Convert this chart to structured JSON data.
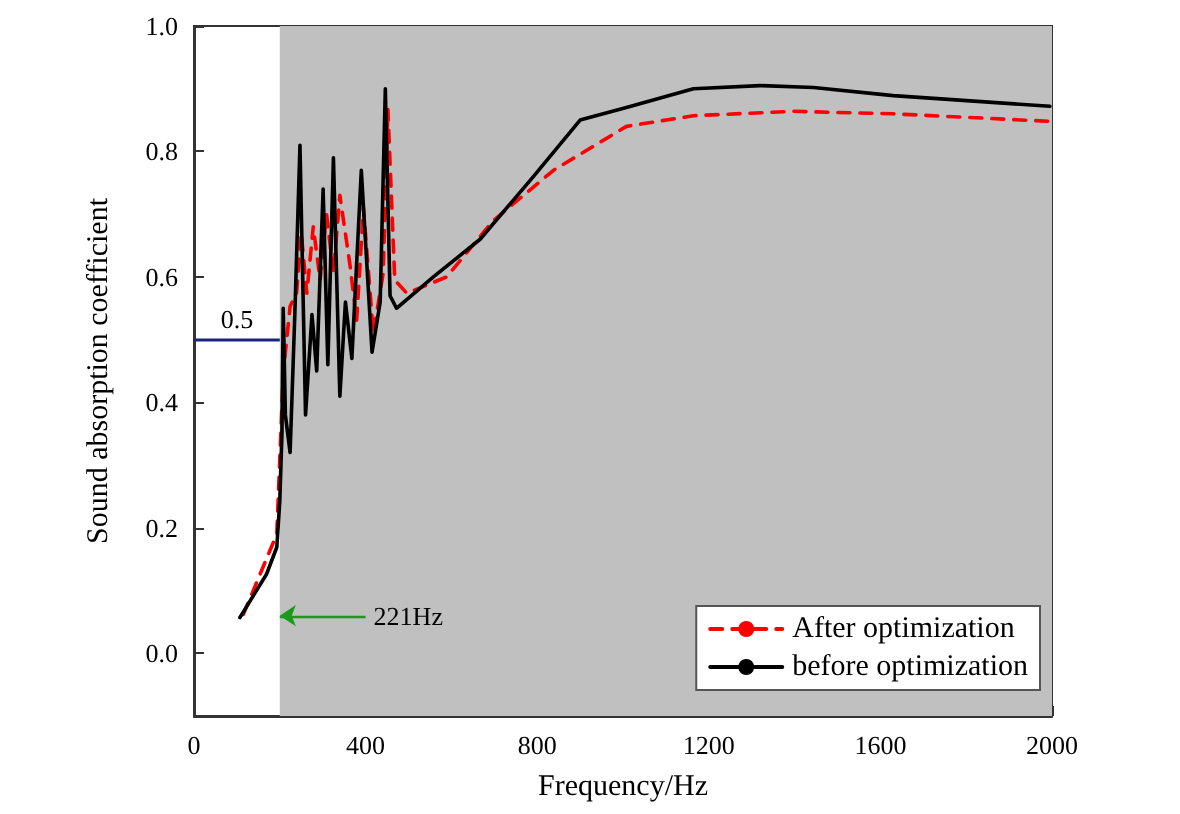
{
  "chart_data": {
    "type": "line",
    "xlabel": "Frequency/Hz",
    "ylabel": "Sound absorption coefficient",
    "xlim": [
      0,
      2000
    ],
    "xticks": [
      0,
      400,
      800,
      1200,
      1600,
      2000
    ],
    "ylim": [
      -0.1,
      1.0
    ],
    "yticks": [
      {
        "value": 0,
        "label": "0.0"
      },
      {
        "value": 0.2,
        "label": "0.2"
      },
      {
        "value": 0.4,
        "label": "0.4"
      },
      {
        "value": 0.6,
        "label": "0.6"
      },
      {
        "value": 0.8,
        "label": "0.8"
      },
      {
        "value": 1.0,
        "label": "1.0"
      }
    ],
    "grid": false,
    "legend": "bottom right",
    "marker": "none",
    "series": [
      {
        "name": "After optimization",
        "color": "#ff0000",
        "line_style": "dashed",
        "x": [
          115,
          193,
          208,
          224,
          239,
          250,
          263,
          278,
          294,
          309,
          325,
          340,
          364,
          379,
          395,
          418,
          441,
          452,
          468,
          496,
          589,
          698,
          838,
          1008,
          1164,
          1397,
          1630,
          1995
        ],
        "values": [
          0.062,
          0.19,
          0.446,
          0.553,
          0.574,
          0.67,
          0.574,
          0.68,
          0.595,
          0.7,
          0.606,
          0.73,
          0.617,
          0.53,
          0.71,
          0.51,
          0.606,
          0.867,
          0.595,
          0.574,
          0.6,
          0.69,
          0.77,
          0.84,
          0.857,
          0.864,
          0.86,
          0.848
        ]
      },
      {
        "name": "before optimization",
        "color": "#000000",
        "line_style": "solid",
        "x": [
          107,
          169,
          193,
          200,
          205,
          208,
          213,
          224,
          235,
          247,
          260,
          275,
          286,
          301,
          312,
          325,
          340,
          353,
          368,
          390,
          415,
          434,
          446,
          457,
          472,
          558,
          667,
          791,
          900,
          1008,
          1164,
          1319,
          1444,
          1630,
          1995
        ],
        "values": [
          0.057,
          0.126,
          0.169,
          0.243,
          0.35,
          0.55,
          0.38,
          0.32,
          0.54,
          0.81,
          0.38,
          0.54,
          0.45,
          0.74,
          0.46,
          0.79,
          0.41,
          0.56,
          0.47,
          0.77,
          0.48,
          0.56,
          0.9,
          0.57,
          0.55,
          0.6,
          0.66,
          0.76,
          0.85,
          0.87,
          0.9,
          0.905,
          0.902,
          0.889,
          0.872
        ]
      }
    ],
    "bands": [
      {
        "axis": "x",
        "from": 200,
        "to": 2000,
        "color": "#c0c0c0"
      }
    ],
    "ref_lines": [
      {
        "axis": "y",
        "value": 0.5,
        "label": "0.5",
        "color": "#1a237e"
      }
    ],
    "annotations": [
      {
        "text": "221Hz",
        "x": 200,
        "y": 0.06
      }
    ]
  }
}
